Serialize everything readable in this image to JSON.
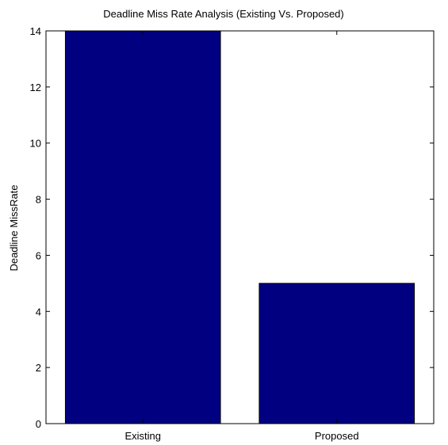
{
  "chart_data": {
    "type": "bar",
    "title": "Deadline Miss Rate Analysis (Existing Vs. Proposed)",
    "xlabel": "",
    "ylabel": "Deadline MissRate",
    "categories": [
      "Existing",
      "Proposed"
    ],
    "values": [
      14,
      5
    ],
    "ylim": [
      0,
      14
    ],
    "yticks": [
      0,
      2,
      4,
      6,
      8,
      10,
      12,
      14
    ],
    "grid": false,
    "legend": "none",
    "colors": {
      "bar_fill": "#000080",
      "bar_edge": "#000000",
      "axis": "#000000",
      "background": "#ffffff"
    }
  }
}
